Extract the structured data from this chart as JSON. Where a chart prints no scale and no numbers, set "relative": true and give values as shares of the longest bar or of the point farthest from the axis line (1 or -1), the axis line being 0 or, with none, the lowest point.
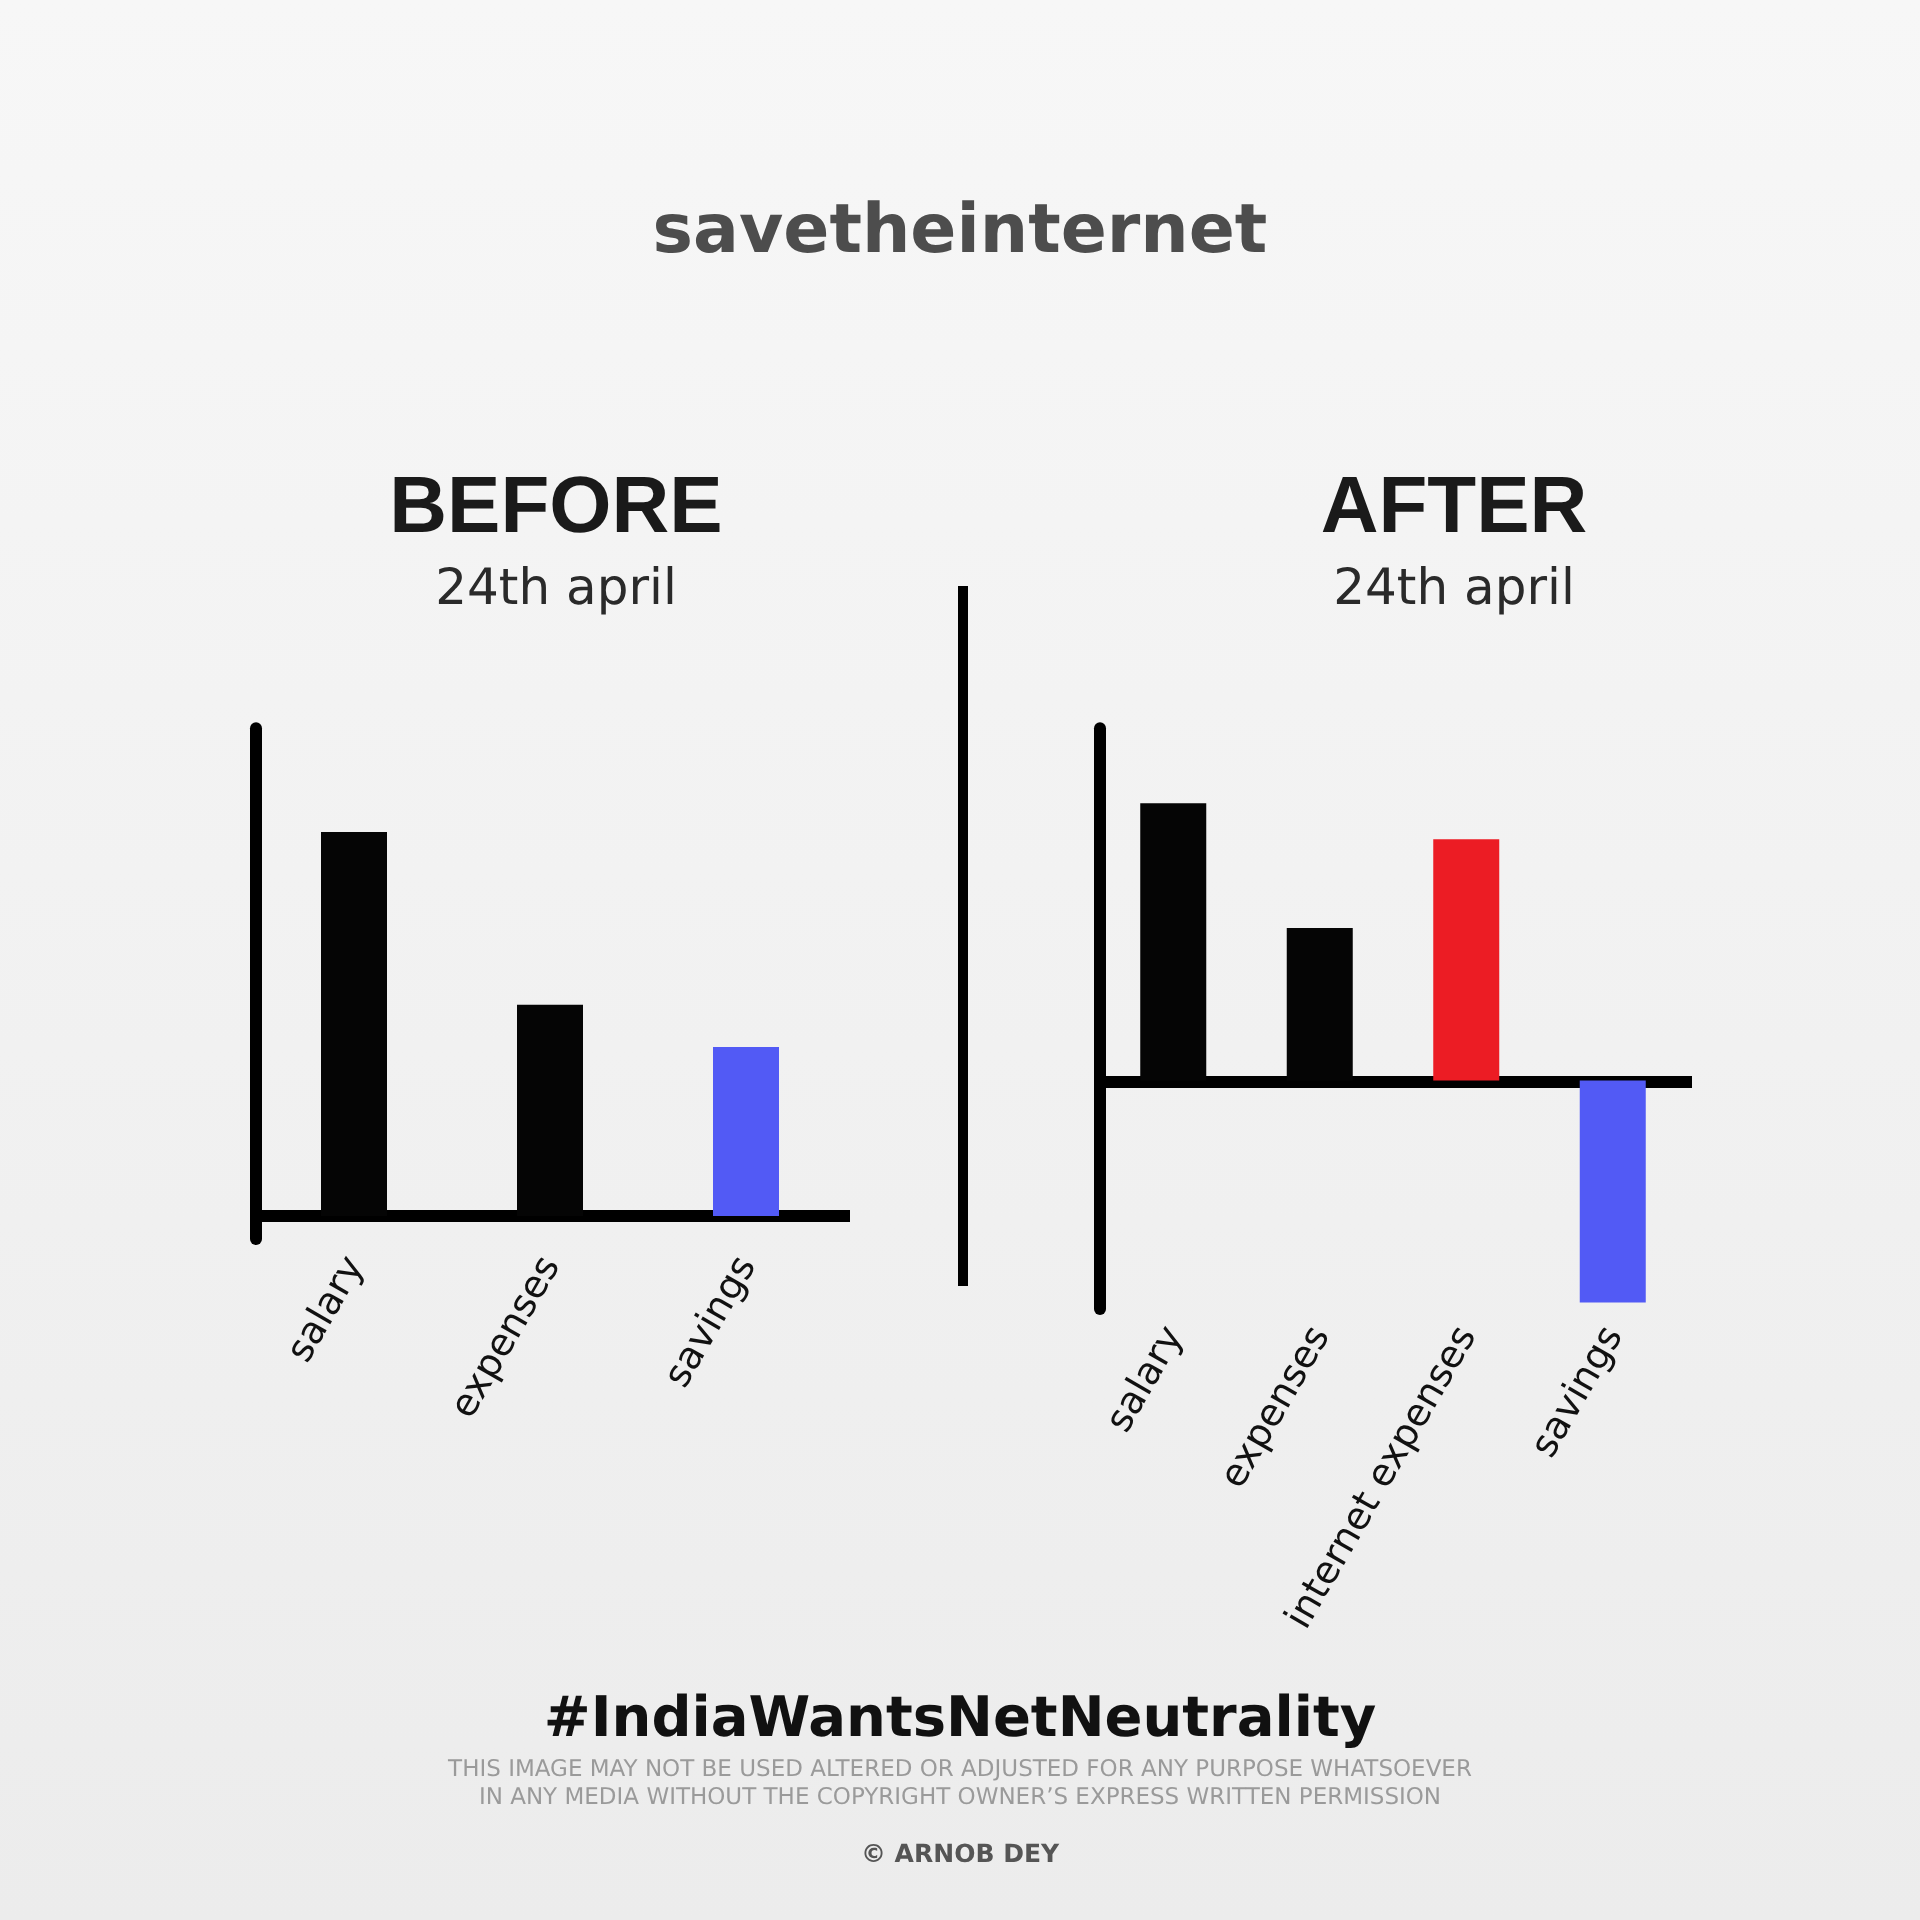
{
  "chart_data": [
    {
      "type": "other",
      "title": "savetheinternet"
    },
    {
      "type": "bar",
      "title": "BEFORE",
      "subtitle": "24th april",
      "categories": [
        "salary",
        "expenses",
        "savings"
      ],
      "values": [
        1,
        0.55,
        0.44
      ],
      "colors": [
        "#050505",
        "#050505",
        "#525af5"
      ],
      "relative": true
    },
    {
      "type": "bar",
      "title": "AFTER",
      "subtitle": "24th april",
      "categories": [
        "salary",
        "expenses",
        "internet expenses",
        "savings"
      ],
      "values": [
        1,
        0.55,
        0.87,
        -0.8
      ],
      "colors": [
        "#050505",
        "#050505",
        "#ec1c24",
        "#525af5"
      ],
      "relative": true
    },
    {
      "type": "other",
      "title": "#IndiaWantsNetNeutrality",
      "annotations": [
        "THIS IMAGE MAY NOT BE USED ALTERED OR ADJUSTED FOR ANY PURPOSE WHATSOEVER\nIN ANY MEDIA WITHOUT THE COPYRIGHT OWNER’S EXPRESS WRITTEN PERMISSION",
        "© ARNOB DEY"
      ]
    }
  ]
}
